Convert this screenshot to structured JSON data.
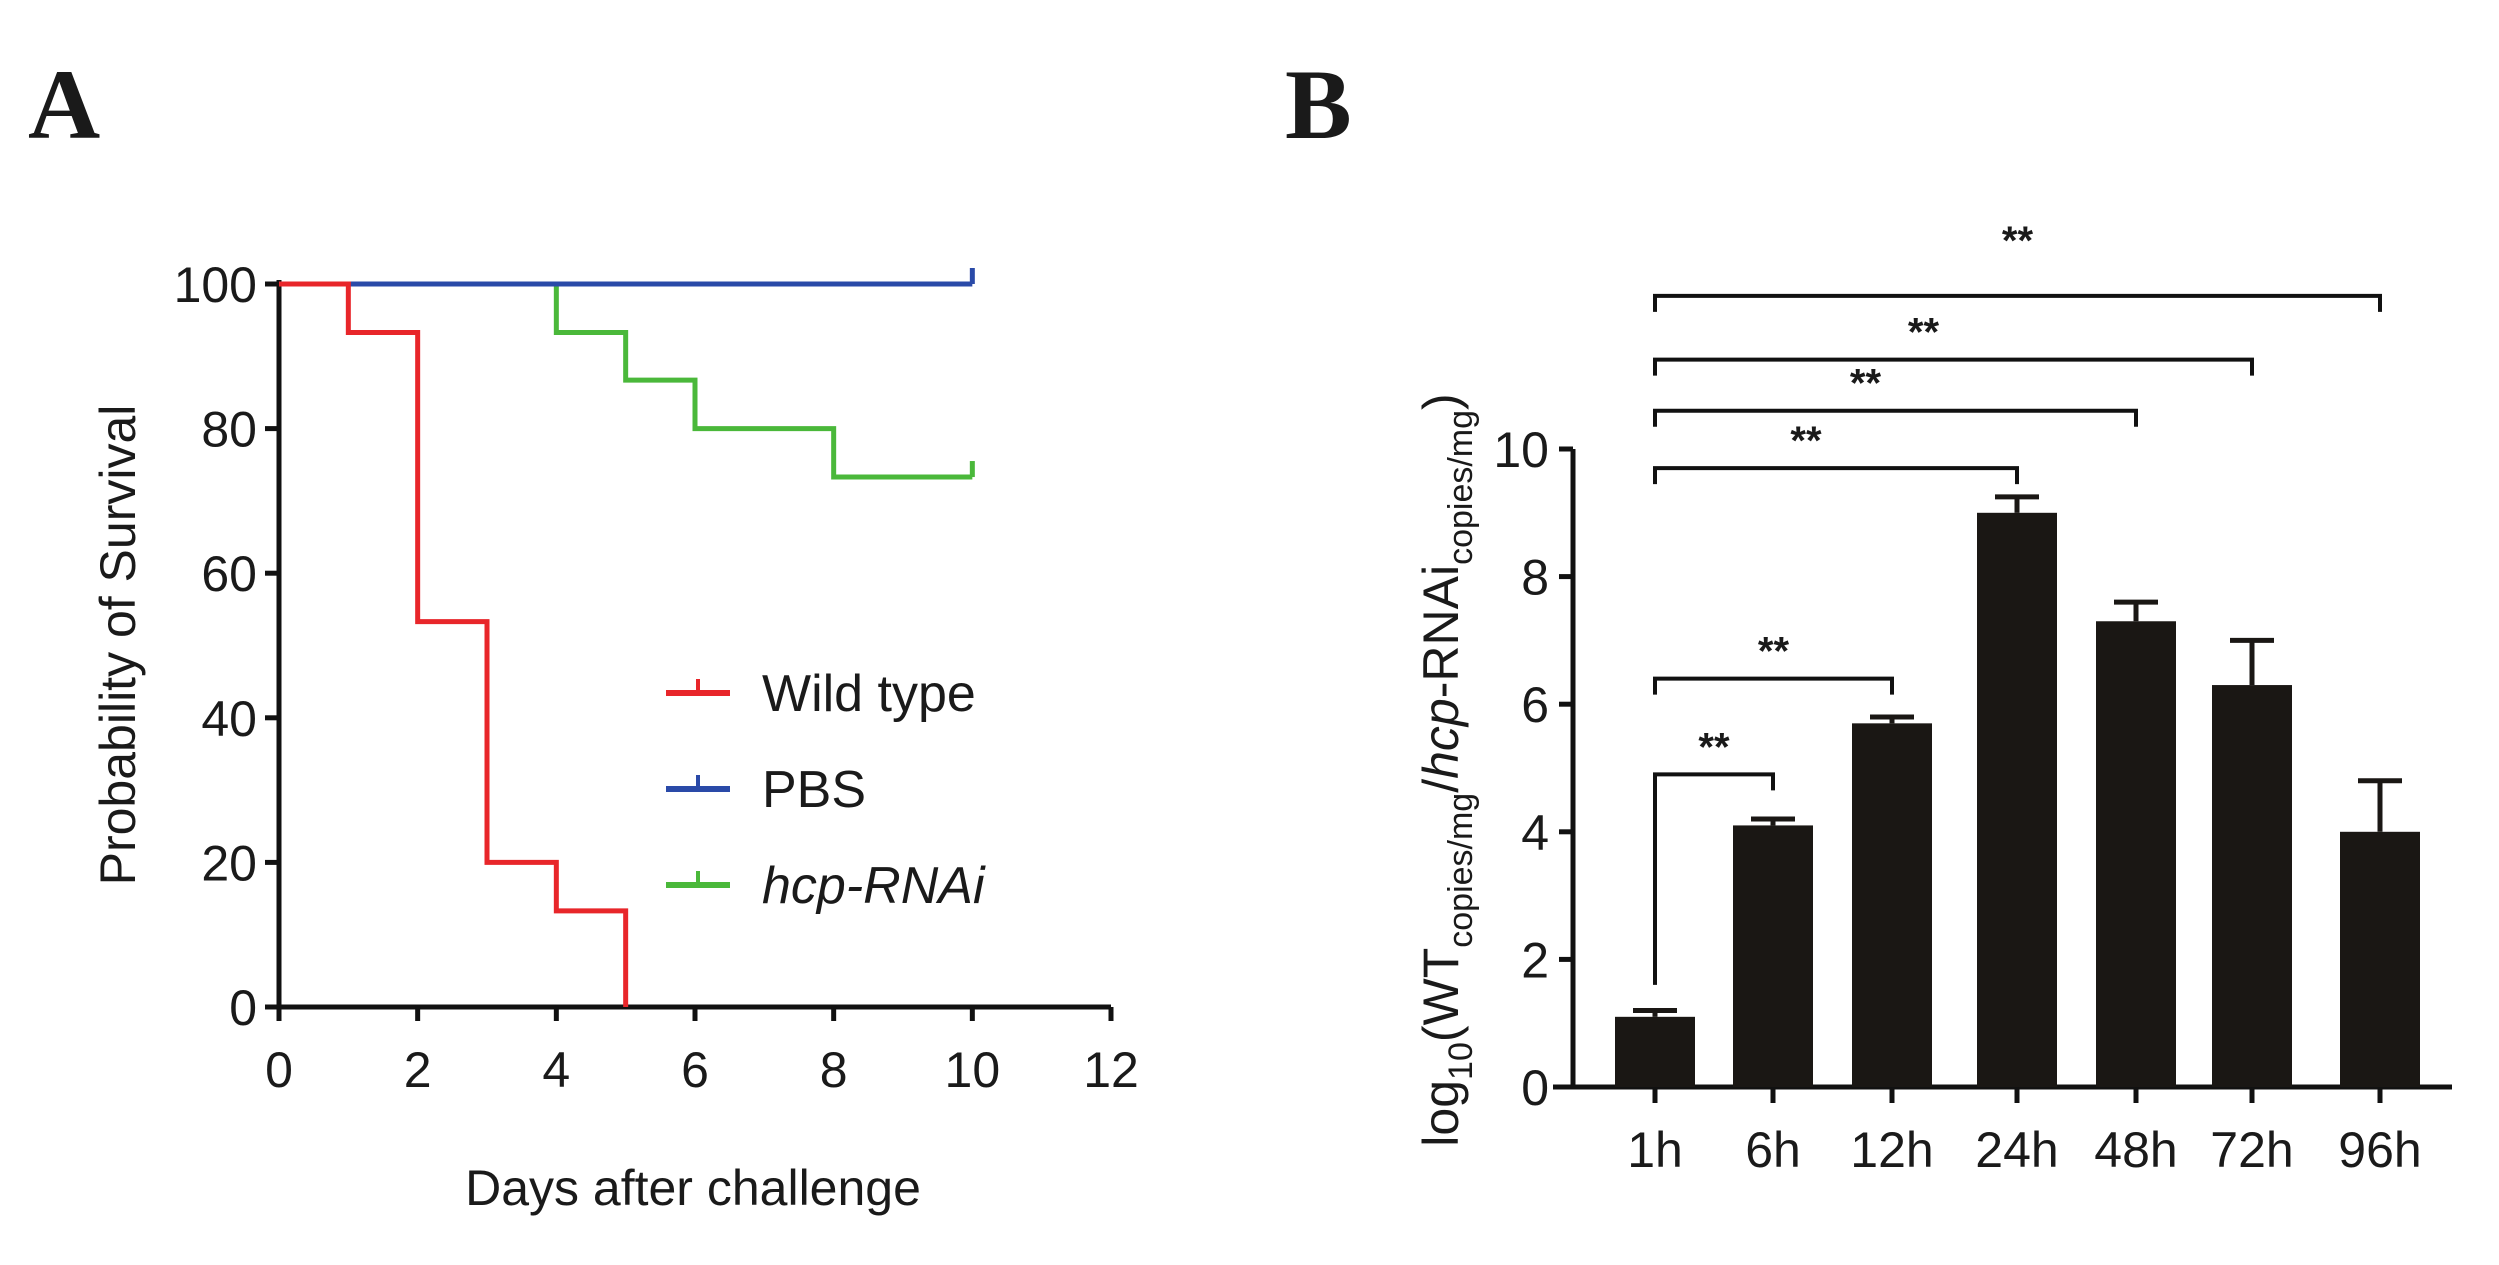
{
  "chart_data": [
    {
      "panel": "A",
      "type": "line",
      "subtype": "kaplan-meier",
      "xlabel": "Days after challenge",
      "ylabel": "Probability of Survival",
      "xlim": [
        0,
        12
      ],
      "ylim": [
        0,
        100
      ],
      "xticks": [
        "0",
        "2",
        "4",
        "6",
        "8",
        "10",
        "12"
      ],
      "yticks": [
        "0",
        "20",
        "40",
        "60",
        "80",
        "100"
      ],
      "xtick_values": [
        0,
        2,
        4,
        6,
        8,
        10,
        12
      ],
      "ytick_values": [
        0,
        20,
        40,
        60,
        80,
        100
      ],
      "legend_position": "center-right",
      "series": [
        {
          "name": "Wild type",
          "italic": false,
          "color": "#e8262a",
          "end": 5,
          "steps": [
            [
              0,
              100
            ],
            [
              1,
              93.3
            ],
            [
              2,
              53.3
            ],
            [
              3,
              20
            ],
            [
              4,
              13.3
            ],
            [
              5,
              0
            ]
          ]
        },
        {
          "name": "PBS",
          "italic": false,
          "color": "#2a4aa8",
          "end": 10,
          "steps": [
            [
              0,
              100
            ]
          ]
        },
        {
          "name": "hcp-RNAi",
          "italic": true,
          "color": "#4ab83a",
          "end": 10,
          "steps": [
            [
              0,
              100
            ],
            [
              4,
              93.3
            ],
            [
              5,
              86.7
            ],
            [
              6,
              80
            ],
            [
              8,
              73.3
            ]
          ]
        }
      ]
    },
    {
      "panel": "B",
      "type": "bar",
      "categories": [
        "1h",
        "6h",
        "12h",
        "24h",
        "48h",
        "72h",
        "96h"
      ],
      "values": [
        1.1,
        4.1,
        5.7,
        9.0,
        7.3,
        6.3,
        4.0
      ],
      "errors": [
        0.1,
        0.1,
        0.1,
        0.25,
        0.3,
        0.7,
        0.8
      ],
      "bar_color": "#1a1714",
      "ylim": [
        0,
        10
      ],
      "yticks": [
        "0",
        "2",
        "4",
        "6",
        "8",
        "10"
      ],
      "ytick_values": [
        0,
        2,
        4,
        6,
        8,
        10
      ],
      "xlabel": "",
      "ylabel_parts": {
        "log": "log",
        "sub10": "10",
        "open": "(WT",
        "sub1": "copies/mg",
        "slash": "/",
        "hcp": "hcp",
        "rnai": "-RNAi",
        "sub2": "copies/mg",
        "close": ")"
      },
      "significance": [
        {
          "from": "1h",
          "to": "6h",
          "level": 4.9,
          "label": "**"
        },
        {
          "from": "1h",
          "to": "12h",
          "level": 6.4,
          "label": "**"
        },
        {
          "from": "1h",
          "to": "24h",
          "level": 9.7,
          "label": "**"
        },
        {
          "from": "1h",
          "to": "48h",
          "level": 10.6,
          "label": "**"
        },
        {
          "from": "1h",
          "to": "72h",
          "level": 11.4,
          "label": "**"
        },
        {
          "from": "1h",
          "to": "96h",
          "level": 12.4,
          "label": "**"
        }
      ]
    }
  ],
  "panels": {
    "a_label": "A",
    "b_label": "B"
  }
}
